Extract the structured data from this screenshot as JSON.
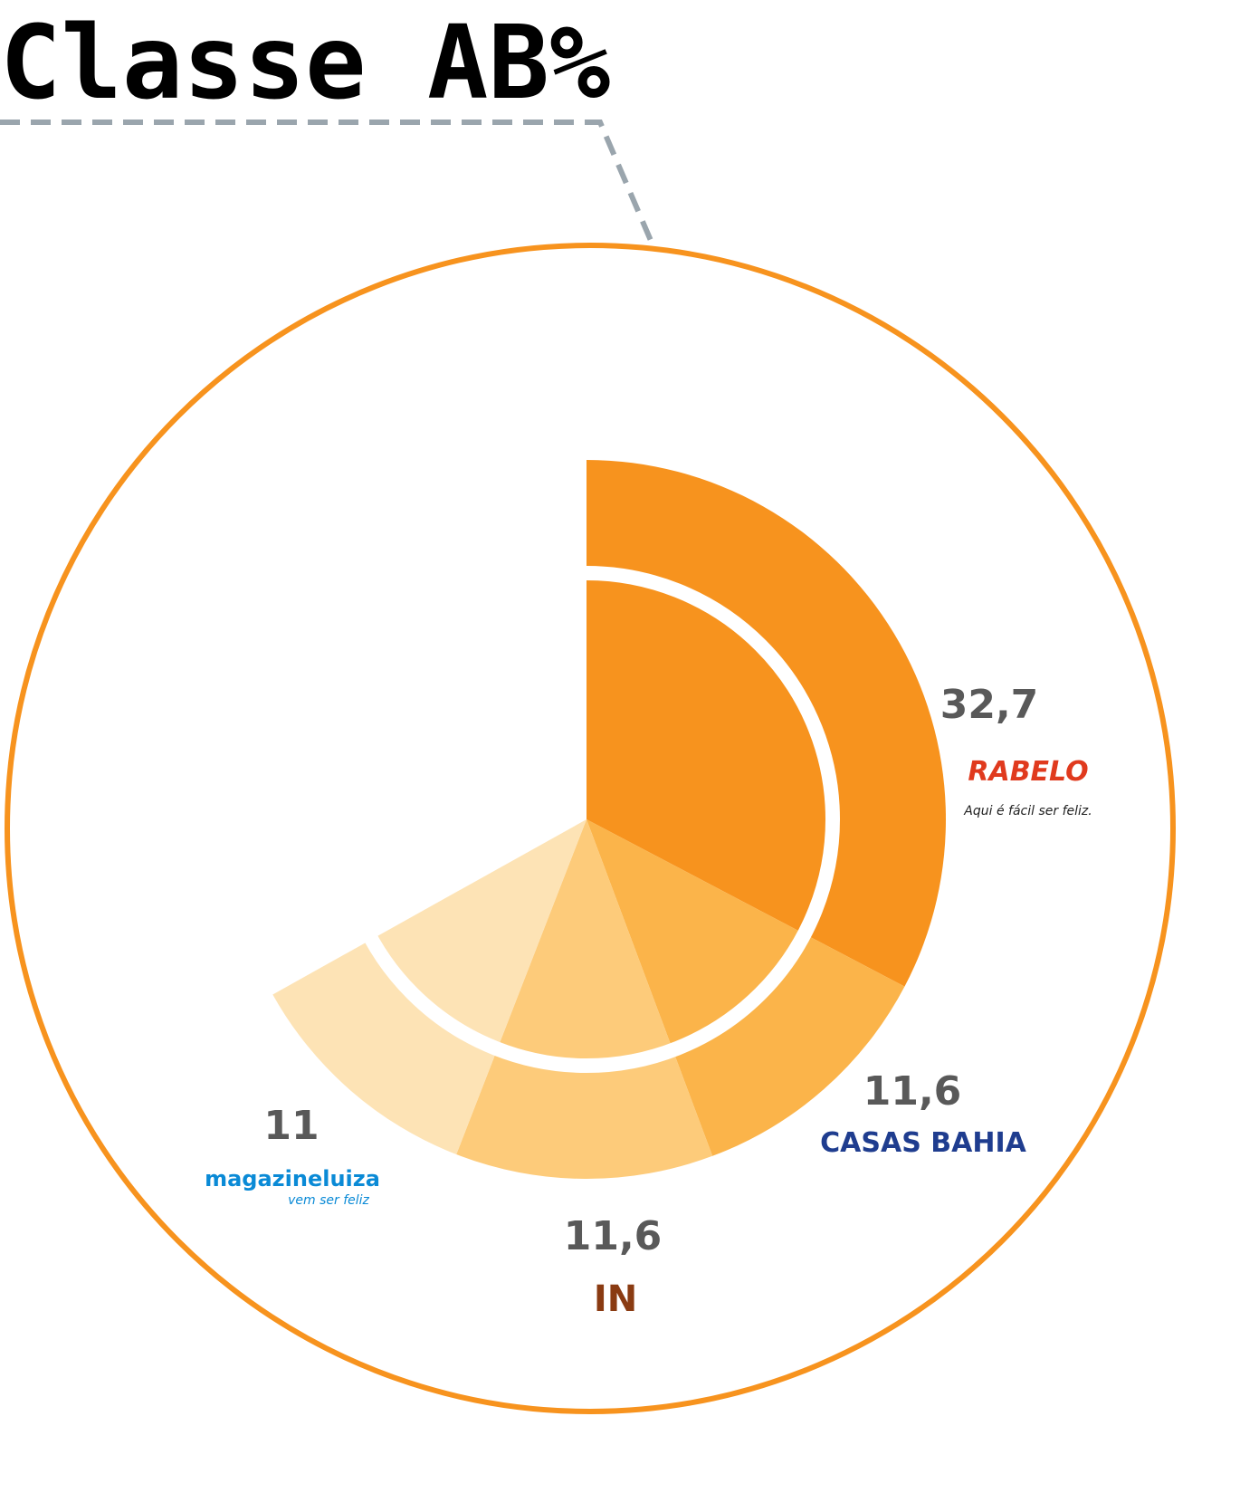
{
  "chart_data": {
    "type": "pie",
    "title": "Classe AB%",
    "categories": [
      "RABELO",
      "CASAS BAHIA",
      "IN",
      "magazineluiza"
    ],
    "taglines": [
      "Aqui é fácil ser feliz.",
      null,
      null,
      "vem ser feliz"
    ],
    "values": [
      32.7,
      11.6,
      11.6,
      11
    ],
    "value_labels": [
      "32,7",
      "11,6",
      "11,6",
      "11"
    ],
    "colors": [
      "#f7931e",
      "#fbb44a",
      "#fdcb7a",
      "#fde3b5"
    ],
    "ylim": [
      0,
      100
    ]
  }
}
